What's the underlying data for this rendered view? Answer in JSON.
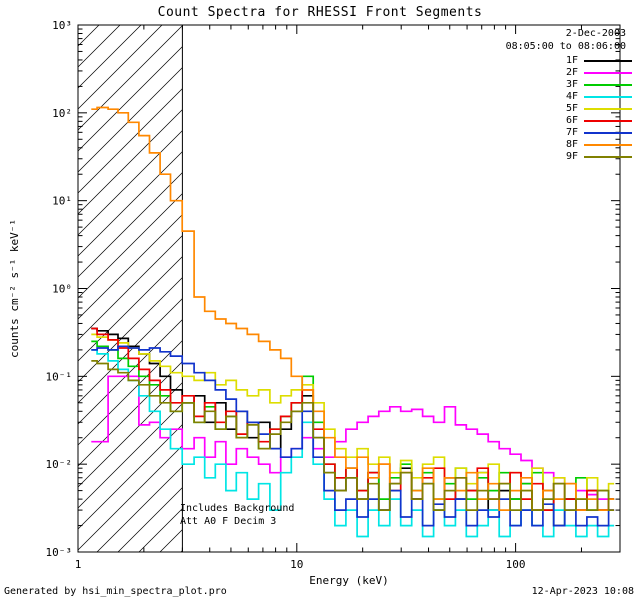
{
  "header": {
    "date": "2-Dec-2003",
    "time_range": "08:05:00 to 08:06:00"
  },
  "annotations": {
    "background_note": "Includes Background",
    "attenuation_note": "Att A0 F Decim 3"
  },
  "footer": {
    "generated_by": "Generated by hsi_min_spectra_plot.pro",
    "timestamp": "12-Apr-2023 10:08"
  },
  "chart_data": {
    "type": "line",
    "title": "Count Spectra for RHESSI Front Segments",
    "xlabel": "Energy (keV)",
    "ylabel": "counts cm⁻² s⁻¹ keV⁻¹",
    "xscale": "log",
    "yscale": "log",
    "xlim": [
      1,
      300
    ],
    "ylim": [
      0.001,
      1000
    ],
    "grid": false,
    "legend_position": "top-right",
    "hatch_region": [
      1,
      3
    ],
    "x_ticks": [
      1,
      10,
      100
    ],
    "x_tick_labels": [
      "1",
      "10",
      "100"
    ],
    "y_ticks": [
      0.001,
      0.01,
      0.1,
      1,
      10,
      100,
      1000
    ],
    "y_tick_labels": [
      "10⁻³",
      "10⁻²",
      "10⁻¹",
      "10⁰",
      "10¹",
      "10²",
      "10³"
    ],
    "x": [
      1.15,
      1.3,
      1.45,
      1.6,
      1.8,
      2.0,
      2.25,
      2.5,
      2.8,
      3.2,
      3.6,
      4.0,
      4.5,
      5.0,
      5.6,
      6.3,
      7.1,
      8.0,
      8.9,
      10.0,
      11.2,
      12.6,
      14.1,
      15.8,
      17.8,
      20.0,
      22.4,
      25.1,
      28.2,
      31.6,
      35.5,
      39.8,
      44.7,
      50.1,
      56.2,
      63.1,
      70.8,
      79.4,
      89.1,
      100,
      112,
      126,
      141,
      158,
      178,
      200,
      224,
      251,
      282
    ],
    "series": [
      {
        "name": "1F",
        "color": "#000000",
        "values": [
          0.35,
          0.33,
          0.3,
          0.27,
          0.22,
          0.18,
          0.14,
          0.1,
          0.07,
          0.05,
          0.06,
          0.03,
          0.05,
          0.025,
          0.04,
          0.02,
          0.03,
          0.015,
          0.025,
          0.04,
          0.06,
          0.02,
          0.008,
          0.005,
          0.007,
          0.004,
          0.008,
          0.003,
          0.006,
          0.009,
          0.004,
          0.006,
          0.003,
          0.007,
          0.004,
          0.005,
          0.008,
          0.003,
          0.005,
          0.004,
          0.006,
          0.003,
          0.005,
          0.002,
          0.004,
          0.003,
          0.005,
          0.003,
          0.004
        ]
      },
      {
        "name": "2F",
        "color": "#ff00ff",
        "values": [
          0.018,
          0.018,
          0.1,
          0.1,
          0.1,
          0.028,
          0.03,
          0.02,
          0.025,
          0.015,
          0.02,
          0.012,
          0.018,
          0.01,
          0.015,
          0.012,
          0.01,
          0.008,
          0.012,
          0.015,
          0.02,
          0.015,
          0.012,
          0.018,
          0.025,
          0.03,
          0.035,
          0.04,
          0.045,
          0.04,
          0.042,
          0.035,
          0.03,
          0.045,
          0.028,
          0.025,
          0.022,
          0.018,
          0.015,
          0.013,
          0.011,
          0.009,
          0.008,
          0.007,
          0.006,
          0.005,
          0.0045,
          0.004,
          0.003
        ]
      },
      {
        "name": "3F",
        "color": "#00cc00",
        "values": [
          0.25,
          0.22,
          0.2,
          0.16,
          0.13,
          0.1,
          0.08,
          0.06,
          0.04,
          0.05,
          0.03,
          0.045,
          0.025,
          0.035,
          0.02,
          0.03,
          0.015,
          0.025,
          0.035,
          0.05,
          0.1,
          0.03,
          0.01,
          0.007,
          0.009,
          0.005,
          0.008,
          0.004,
          0.007,
          0.01,
          0.005,
          0.008,
          0.004,
          0.006,
          0.009,
          0.004,
          0.007,
          0.005,
          0.008,
          0.004,
          0.006,
          0.008,
          0.003,
          0.006,
          0.004,
          0.007,
          0.003,
          0.005,
          0.004
        ]
      },
      {
        "name": "4F",
        "color": "#00e5e5",
        "values": [
          0.2,
          0.18,
          0.15,
          0.12,
          0.09,
          0.06,
          0.04,
          0.025,
          0.015,
          0.01,
          0.012,
          0.007,
          0.01,
          0.005,
          0.008,
          0.004,
          0.006,
          0.003,
          0.008,
          0.012,
          0.03,
          0.01,
          0.004,
          0.002,
          0.003,
          0.0015,
          0.003,
          0.002,
          0.004,
          0.002,
          0.003,
          0.0015,
          0.003,
          0.002,
          0.003,
          0.0015,
          0.002,
          0.003,
          0.0015,
          0.002,
          0.003,
          0.002,
          0.0015,
          0.003,
          0.002,
          0.0015,
          0.002,
          0.0015,
          0.002
        ]
      },
      {
        "name": "5F",
        "color": "#dddd00",
        "values": [
          0.3,
          0.28,
          0.26,
          0.24,
          0.21,
          0.18,
          0.15,
          0.13,
          0.11,
          0.1,
          0.09,
          0.11,
          0.08,
          0.09,
          0.07,
          0.06,
          0.07,
          0.05,
          0.06,
          0.07,
          0.08,
          0.05,
          0.025,
          0.015,
          0.012,
          0.015,
          0.01,
          0.012,
          0.008,
          0.011,
          0.007,
          0.01,
          0.012,
          0.007,
          0.009,
          0.006,
          0.008,
          0.01,
          0.006,
          0.008,
          0.005,
          0.009,
          0.005,
          0.007,
          0.006,
          0.004,
          0.007,
          0.005,
          0.006
        ]
      },
      {
        "name": "6F",
        "color": "#ee0000",
        "values": [
          0.35,
          0.3,
          0.26,
          0.21,
          0.16,
          0.12,
          0.09,
          0.07,
          0.05,
          0.06,
          0.035,
          0.05,
          0.03,
          0.04,
          0.022,
          0.03,
          0.018,
          0.025,
          0.035,
          0.05,
          0.07,
          0.025,
          0.01,
          0.007,
          0.009,
          0.005,
          0.008,
          0.01,
          0.005,
          0.008,
          0.004,
          0.007,
          0.009,
          0.004,
          0.007,
          0.005,
          0.009,
          0.004,
          0.006,
          0.008,
          0.004,
          0.006,
          0.003,
          0.006,
          0.004,
          0.003,
          0.005,
          0.003,
          0.004
        ]
      },
      {
        "name": "7F",
        "color": "#1133cc",
        "values": [
          0.2,
          0.21,
          0.2,
          0.22,
          0.21,
          0.2,
          0.21,
          0.19,
          0.17,
          0.14,
          0.11,
          0.09,
          0.07,
          0.055,
          0.04,
          0.03,
          0.022,
          0.015,
          0.012,
          0.015,
          0.04,
          0.012,
          0.005,
          0.003,
          0.004,
          0.0025,
          0.004,
          0.003,
          0.005,
          0.0025,
          0.004,
          0.002,
          0.0035,
          0.0025,
          0.004,
          0.002,
          0.003,
          0.0025,
          0.004,
          0.002,
          0.003,
          0.002,
          0.0035,
          0.002,
          0.003,
          0.002,
          0.0025,
          0.002,
          0.003
        ]
      },
      {
        "name": "8F",
        "color": "#ff8800",
        "values": [
          110,
          115,
          110,
          100,
          78,
          55,
          35,
          20,
          10,
          4.5,
          0.8,
          0.55,
          0.45,
          0.4,
          0.35,
          0.3,
          0.25,
          0.2,
          0.16,
          0.1,
          0.07,
          0.04,
          0.02,
          0.012,
          0.009,
          0.012,
          0.007,
          0.01,
          0.006,
          0.008,
          0.005,
          0.009,
          0.004,
          0.007,
          0.005,
          0.008,
          0.004,
          0.006,
          0.003,
          0.005,
          0.007,
          0.003,
          0.005,
          0.004,
          0.006,
          0.003,
          0.004,
          0.003,
          0.004
        ]
      },
      {
        "name": "9F",
        "color": "#808000",
        "values": [
          0.15,
          0.14,
          0.12,
          0.11,
          0.09,
          0.08,
          0.06,
          0.05,
          0.04,
          0.05,
          0.03,
          0.04,
          0.025,
          0.035,
          0.02,
          0.028,
          0.015,
          0.022,
          0.03,
          0.04,
          0.05,
          0.02,
          0.008,
          0.005,
          0.007,
          0.004,
          0.006,
          0.003,
          0.006,
          0.008,
          0.004,
          0.006,
          0.003,
          0.005,
          0.007,
          0.003,
          0.005,
          0.004,
          0.006,
          0.003,
          0.005,
          0.003,
          0.004,
          0.006,
          0.003,
          0.004,
          0.003,
          0.005,
          0.003
        ]
      }
    ]
  }
}
